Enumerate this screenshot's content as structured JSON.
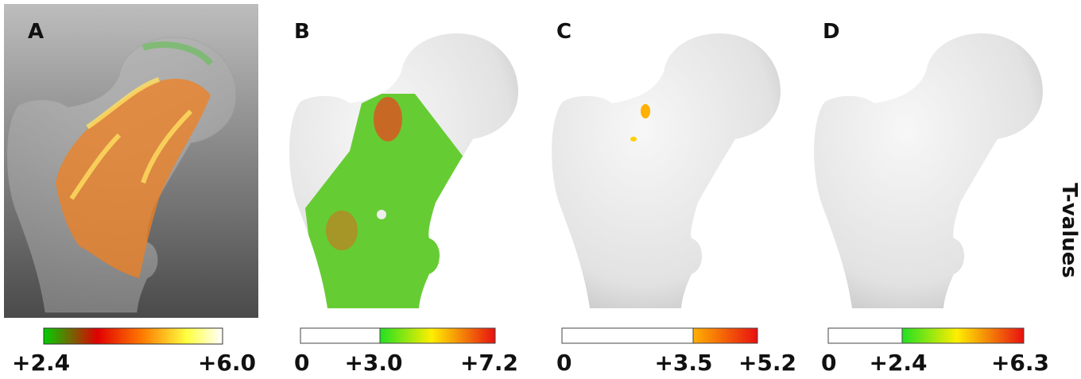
{
  "axis_title": "T-values",
  "panels": [
    {
      "label": "A",
      "colorbar_labels": [
        "+2.4",
        "+6.0"
      ]
    },
    {
      "label": "B",
      "colorbar_labels": [
        "0",
        "+3.0",
        "+7.2"
      ]
    },
    {
      "label": "C",
      "colorbar_labels": [
        "0",
        "+3.5",
        "+5.2"
      ]
    },
    {
      "label": "D",
      "colorbar_labels": [
        "0",
        "+2.4",
        "+6.3"
      ]
    }
  ]
}
